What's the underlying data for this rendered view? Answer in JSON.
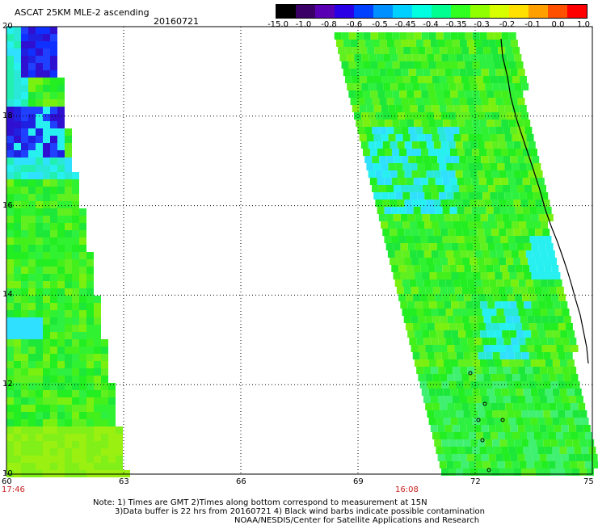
{
  "header": {
    "title": "ASCAT 25KM MLE-2 ascending",
    "date": "20160721"
  },
  "colorbar": {
    "labels": [
      "-15.0",
      "-1.0",
      "-0.8",
      "-0.6",
      "-0.5",
      "-0.45",
      "-0.4",
      "-0.35",
      "-0.3",
      "-0.2",
      "-0.1",
      "0.0",
      "1.0"
    ],
    "colors": [
      "#000000",
      "#3a0068",
      "#5a00b4",
      "#2a00e6",
      "#0040ff",
      "#0090ff",
      "#00d0ff",
      "#00ffe0",
      "#00ff90",
      "#30ff20",
      "#90ff00",
      "#d8ff00",
      "#ffe000",
      "#ffa000",
      "#ff5000",
      "#ff0000"
    ]
  },
  "map": {
    "lat_labels": [
      "20",
      "18",
      "16",
      "14",
      "12",
      "10"
    ],
    "lon_labels": [
      "60",
      "63",
      "66",
      "69",
      "72",
      "75"
    ],
    "swath_times": [
      "17:46",
      "16:08"
    ],
    "lat_range": [
      10,
      20
    ],
    "lon_range": [
      60,
      75
    ]
  },
  "footer": {
    "note_line1": "Note: 1) Times are GMT 2)Times along bottom correspond to measurement at 15N",
    "note_line2": "3)Data buffer is 22 hrs from 20160721 4) Black wind barbs indicate possible contamination",
    "note_line3": "NOAA/NESDIS/Center for Satellite Applications and Research"
  }
}
